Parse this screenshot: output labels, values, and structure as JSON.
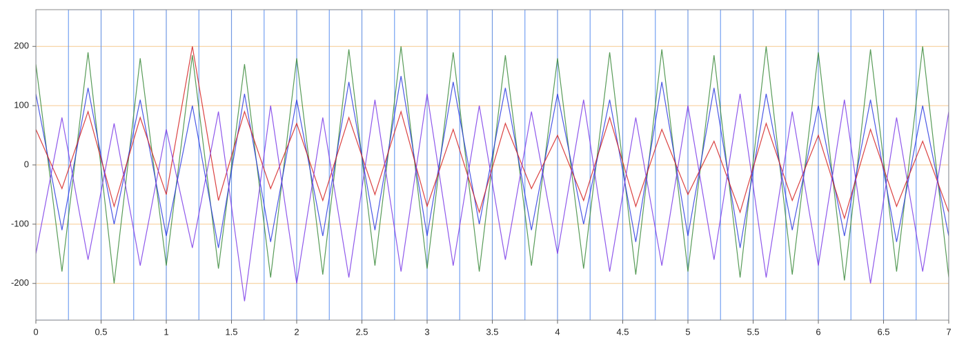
{
  "chart_data": {
    "type": "line",
    "xlim": [
      0,
      7
    ],
    "ylim": [
      -262,
      262
    ],
    "xticks": [
      0,
      0.5,
      1,
      1.5,
      2,
      2.5,
      3,
      3.5,
      4,
      4.5,
      5,
      5.5,
      6,
      6.5,
      7
    ],
    "yticks": [
      -200,
      -100,
      0,
      100,
      200
    ],
    "grid": true,
    "grid_color": "#f6c98f",
    "series": [
      {
        "color": "#5b8ff0",
        "x": [
          0,
          0,
          0.25,
          0.25,
          0.5,
          0.5,
          0.75,
          0.75,
          1,
          1,
          1.25,
          1.25,
          1.5,
          1.5,
          1.75,
          1.75,
          2,
          2,
          2.25,
          2.25,
          2.5,
          2.5,
          2.75,
          2.75,
          3,
          3,
          3.25,
          3.25,
          3.5,
          3.5,
          3.75,
          3.75,
          4,
          4,
          4.25,
          4.25,
          4.5,
          4.5,
          4.75,
          4.75,
          5,
          5,
          5.25,
          5.25,
          5.5,
          5.5,
          5.75,
          5.75,
          6,
          6,
          6.25,
          6.25,
          6.5,
          6.5,
          6.75,
          6.75,
          7,
          7
        ],
        "values": [
          262,
          -262,
          -262,
          262,
          262,
          -262,
          -262,
          262,
          262,
          -262,
          -262,
          262,
          262,
          -262,
          -262,
          262,
          262,
          -262,
          -262,
          262,
          262,
          -262,
          -262,
          262,
          262,
          -262,
          -262,
          262,
          262,
          -262,
          -262,
          262,
          262,
          -262,
          -262,
          262,
          262,
          -262,
          -262,
          262,
          262,
          -262,
          -262,
          262,
          262,
          -262,
          -262,
          262,
          262,
          -262,
          -262,
          262,
          262,
          -262,
          -262,
          262,
          262,
          -262
        ]
      },
      {
        "color": "#3a8a3a",
        "x": [
          0,
          0.2,
          0.4,
          0.6,
          0.8,
          1,
          1.2,
          1.4,
          1.6,
          1.8,
          2,
          2.2,
          2.4,
          2.6,
          2.8,
          3,
          3.2,
          3.4,
          3.6,
          3.8,
          4,
          4.2,
          4.4,
          4.6,
          4.8,
          5,
          5.2,
          5.4,
          5.6,
          5.8,
          6,
          6.2,
          6.4,
          6.6,
          6.8,
          7
        ],
        "values": [
          170,
          -180,
          190,
          -200,
          180,
          -170,
          185,
          -175,
          170,
          -190,
          180,
          -185,
          195,
          -170,
          200,
          -175,
          190,
          -180,
          185,
          -170,
          180,
          -175,
          190,
          -185,
          195,
          -180,
          185,
          -190,
          200,
          -185,
          190,
          -195,
          195,
          -180,
          200,
          -190
        ]
      },
      {
        "color": "#2a3ae0",
        "x": [
          0,
          0.2,
          0.4,
          0.6,
          0.8,
          1,
          1.2,
          1.4,
          1.6,
          1.8,
          2,
          2.2,
          2.4,
          2.6,
          2.8,
          3,
          3.2,
          3.4,
          3.6,
          3.8,
          4,
          4.2,
          4.4,
          4.6,
          4.8,
          5,
          5.2,
          5.4,
          5.6,
          5.8,
          6,
          6.2,
          6.4,
          6.6,
          6.8,
          7
        ],
        "values": [
          120,
          -110,
          130,
          -100,
          110,
          -120,
          100,
          -140,
          120,
          -130,
          110,
          -120,
          140,
          -110,
          150,
          -120,
          140,
          -100,
          130,
          -110,
          120,
          -100,
          110,
          -130,
          140,
          -120,
          130,
          -140,
          120,
          -110,
          100,
          -120,
          110,
          -130,
          100,
          -120
        ]
      },
      {
        "color": "#d42020",
        "x": [
          0,
          0.2,
          0.4,
          0.6,
          0.8,
          1,
          1.2,
          1.4,
          1.6,
          1.8,
          2,
          2.2,
          2.4,
          2.6,
          2.8,
          3,
          3.2,
          3.4,
          3.6,
          3.8,
          4,
          4.2,
          4.4,
          4.6,
          4.8,
          5,
          5.2,
          5.4,
          5.6,
          5.8,
          6,
          6.2,
          6.4,
          6.6,
          6.8,
          7
        ],
        "values": [
          60,
          -40,
          90,
          -70,
          80,
          -50,
          200,
          -60,
          90,
          -40,
          70,
          -60,
          80,
          -50,
          90,
          -70,
          60,
          -80,
          70,
          -40,
          50,
          -60,
          80,
          -70,
          60,
          -50,
          40,
          -80,
          70,
          -60,
          50,
          -90,
          60,
          -70,
          40,
          -80
        ]
      },
      {
        "color": "#7a3ae8",
        "x": [
          0,
          0.2,
          0.4,
          0.6,
          0.8,
          1,
          1.2,
          1.4,
          1.6,
          1.8,
          2,
          2.2,
          2.4,
          2.6,
          2.8,
          3,
          3.2,
          3.4,
          3.6,
          3.8,
          4,
          4.2,
          4.4,
          4.6,
          4.8,
          5,
          5.2,
          5.4,
          5.6,
          5.8,
          6,
          6.2,
          6.4,
          6.6,
          6.8,
          7
        ],
        "values": [
          -150,
          80,
          -160,
          70,
          -170,
          60,
          -140,
          90,
          -230,
          100,
          -200,
          80,
          -190,
          110,
          -180,
          120,
          -170,
          100,
          -160,
          90,
          -150,
          110,
          -180,
          80,
          -170,
          100,
          -160,
          120,
          -190,
          90,
          -170,
          110,
          -200,
          80,
          -180,
          90
        ]
      }
    ]
  }
}
